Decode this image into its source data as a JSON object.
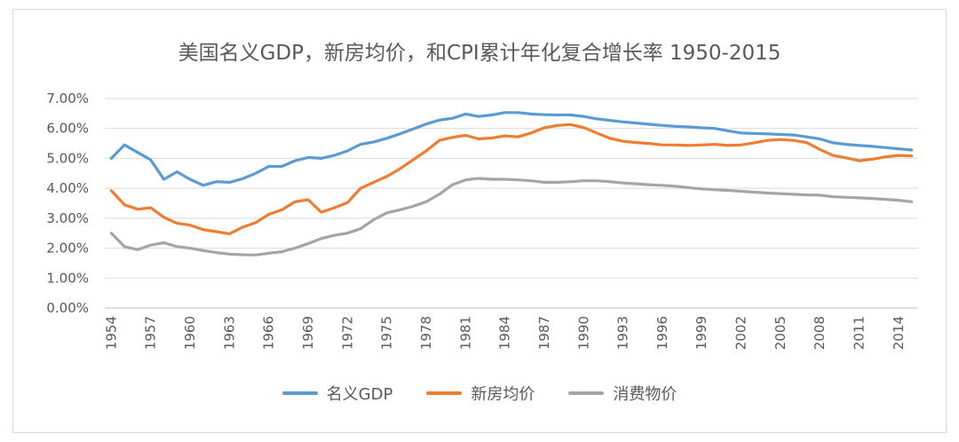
{
  "chart_data": {
    "type": "line",
    "title": "美国名义GDP，新房均价，和CPI累计年化复合增长率 1950-2015",
    "xlabel": "",
    "ylabel": "",
    "ylim": [
      0,
      0.07
    ],
    "y_tick_labels": [
      "0.00%",
      "1.00%",
      "2.00%",
      "3.00%",
      "4.00%",
      "5.00%",
      "6.00%",
      "7.00%"
    ],
    "x_tick_labels": [
      "1954",
      "1957",
      "1960",
      "1963",
      "1966",
      "1969",
      "1972",
      "1975",
      "1978",
      "1981",
      "1984",
      "1987",
      "1990",
      "1993",
      "1996",
      "1999",
      "2002",
      "2005",
      "2008",
      "2011",
      "2014"
    ],
    "legend_position": "bottom",
    "grid": "horizontal",
    "x": [
      1954,
      1955,
      1956,
      1957,
      1958,
      1959,
      1960,
      1961,
      1962,
      1963,
      1964,
      1965,
      1966,
      1967,
      1968,
      1969,
      1970,
      1971,
      1972,
      1973,
      1974,
      1975,
      1976,
      1977,
      1978,
      1979,
      1980,
      1981,
      1982,
      1983,
      1984,
      1985,
      1986,
      1987,
      1988,
      1989,
      1990,
      1991,
      1992,
      1993,
      1994,
      1995,
      1996,
      1997,
      1998,
      1999,
      2000,
      2001,
      2002,
      2003,
      2004,
      2005,
      2006,
      2007,
      2008,
      2009,
      2010,
      2011,
      2012,
      2013,
      2014,
      2015
    ],
    "series": [
      {
        "name": "名义GDP",
        "color": "#5b9bd5",
        "values": [
          0.05,
          0.0545,
          0.052,
          0.0495,
          0.043,
          0.0455,
          0.043,
          0.041,
          0.0422,
          0.042,
          0.0432,
          0.045,
          0.0473,
          0.0473,
          0.0492,
          0.0503,
          0.05,
          0.051,
          0.0525,
          0.0547,
          0.0555,
          0.0567,
          0.0582,
          0.0598,
          0.0615,
          0.0628,
          0.0634,
          0.0648,
          0.064,
          0.0645,
          0.0653,
          0.0653,
          0.0648,
          0.0646,
          0.0645,
          0.0645,
          0.064,
          0.0632,
          0.0627,
          0.0622,
          0.0618,
          0.0614,
          0.061,
          0.0607,
          0.0605,
          0.0602,
          0.06,
          0.0592,
          0.0585,
          0.0583,
          0.0582,
          0.058,
          0.0578,
          0.0572,
          0.0565,
          0.0552,
          0.0547,
          0.0543,
          0.054,
          0.0536,
          0.0532,
          0.0528
        ]
      },
      {
        "name": "新房均价",
        "color": "#ed7d31",
        "values": [
          0.0392,
          0.0345,
          0.033,
          0.0335,
          0.0303,
          0.0283,
          0.0277,
          0.0262,
          0.0255,
          0.0248,
          0.027,
          0.0285,
          0.0313,
          0.0328,
          0.0355,
          0.0362,
          0.032,
          0.0335,
          0.0352,
          0.04,
          0.042,
          0.044,
          0.0465,
          0.0495,
          0.0525,
          0.056,
          0.057,
          0.0577,
          0.0565,
          0.0568,
          0.0575,
          0.0572,
          0.0585,
          0.0602,
          0.061,
          0.0613,
          0.0603,
          0.0585,
          0.0567,
          0.0557,
          0.0553,
          0.055,
          0.0545,
          0.0545,
          0.0543,
          0.0545,
          0.0547,
          0.0543,
          0.0545,
          0.0552,
          0.056,
          0.0563,
          0.056,
          0.0553,
          0.053,
          0.051,
          0.0502,
          0.0492,
          0.0497,
          0.0505,
          0.051,
          0.0508
        ]
      },
      {
        "name": "消费物价",
        "color": "#a5a5a5",
        "values": [
          0.025,
          0.0205,
          0.0195,
          0.021,
          0.0218,
          0.0205,
          0.02,
          0.0192,
          0.0185,
          0.018,
          0.0178,
          0.0177,
          0.0183,
          0.0188,
          0.02,
          0.0215,
          0.0232,
          0.0243,
          0.025,
          0.0265,
          0.0295,
          0.0318,
          0.0328,
          0.034,
          0.0355,
          0.038,
          0.0412,
          0.0428,
          0.0433,
          0.043,
          0.043,
          0.0428,
          0.0425,
          0.042,
          0.042,
          0.0422,
          0.0425,
          0.0425,
          0.0422,
          0.0418,
          0.0415,
          0.0412,
          0.041,
          0.0407,
          0.0402,
          0.0398,
          0.0395,
          0.0393,
          0.039,
          0.0387,
          0.0384,
          0.0382,
          0.038,
          0.0378,
          0.0377,
          0.0372,
          0.037,
          0.0368,
          0.0366,
          0.0363,
          0.036,
          0.0355
        ]
      }
    ]
  }
}
